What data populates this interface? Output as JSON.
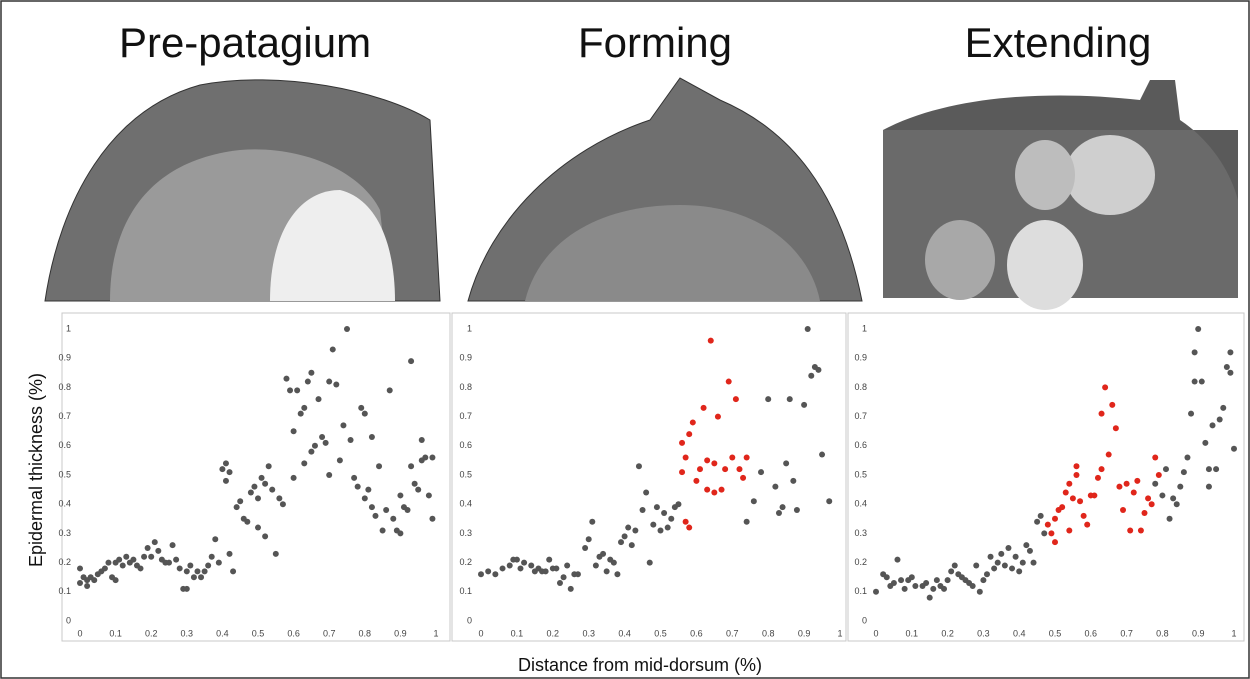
{
  "chart_data": [
    {
      "type": "scatter",
      "title": "Pre-patagium",
      "ylabel": "Epidermal thickness (%)",
      "xlim": [
        0,
        1
      ],
      "ylim": [
        0,
        1
      ],
      "xticks": [
        0,
        0.1,
        0.2,
        0.3,
        0.4,
        0.5,
        0.6,
        0.7,
        0.8,
        0.9,
        1
      ],
      "yticks": [
        0,
        0.1,
        0.2,
        0.3,
        0.4,
        0.5,
        0.6,
        0.7,
        0.8,
        0.9,
        1
      ],
      "series": [
        {
          "color": "#555555",
          "x": [
            0,
            0,
            0.01,
            0.02,
            0.02,
            0.03,
            0.04,
            0.05,
            0.06,
            0.07,
            0.08,
            0.09,
            0.1,
            0.1,
            0.11,
            0.12,
            0.13,
            0.14,
            0.15,
            0.16,
            0.17,
            0.18,
            0.19,
            0.2,
            0.21,
            0.22,
            0.23,
            0.24,
            0.25,
            0.26,
            0.27,
            0.28,
            0.29,
            0.3,
            0.3,
            0.31,
            0.32,
            0.33,
            0.34,
            0.35,
            0.36,
            0.37,
            0.38,
            0.39,
            0.4,
            0.41,
            0.41,
            0.42,
            0.42,
            0.43,
            0.44,
            0.45,
            0.46,
            0.47,
            0.48,
            0.49,
            0.5,
            0.5,
            0.51,
            0.52,
            0.52,
            0.53,
            0.54,
            0.55,
            0.56,
            0.57,
            0.58,
            0.59,
            0.6,
            0.6,
            0.61,
            0.62,
            0.63,
            0.63,
            0.64,
            0.65,
            0.65,
            0.66,
            0.67,
            0.68,
            0.69,
            0.7,
            0.7,
            0.71,
            0.72,
            0.73,
            0.74,
            0.75,
            0.76,
            0.77,
            0.78,
            0.79,
            0.8,
            0.8,
            0.81,
            0.82,
            0.82,
            0.83,
            0.84,
            0.85,
            0.86,
            0.87,
            0.88,
            0.89,
            0.9,
            0.9,
            0.91,
            0.92,
            0.93,
            0.93,
            0.94,
            0.95,
            0.96,
            0.96,
            0.97,
            0.98,
            0.99,
            0.99
          ],
          "values": [
            0.18,
            0.13,
            0.15,
            0.14,
            0.12,
            0.15,
            0.14,
            0.16,
            0.17,
            0.18,
            0.2,
            0.15,
            0.14,
            0.2,
            0.21,
            0.19,
            0.22,
            0.2,
            0.21,
            0.19,
            0.18,
            0.22,
            0.25,
            0.22,
            0.27,
            0.24,
            0.21,
            0.2,
            0.2,
            0.26,
            0.21,
            0.18,
            0.11,
            0.11,
            0.17,
            0.19,
            0.15,
            0.17,
            0.15,
            0.17,
            0.19,
            0.22,
            0.28,
            0.2,
            0.52,
            0.48,
            0.54,
            0.51,
            0.23,
            0.17,
            0.39,
            0.41,
            0.35,
            0.34,
            0.44,
            0.46,
            0.32,
            0.42,
            0.49,
            0.47,
            0.29,
            0.53,
            0.45,
            0.23,
            0.42,
            0.4,
            0.83,
            0.79,
            0.65,
            0.49,
            0.79,
            0.71,
            0.73,
            0.54,
            0.82,
            0.85,
            0.58,
            0.6,
            0.76,
            0.63,
            0.61,
            0.5,
            0.82,
            0.93,
            0.81,
            0.55,
            0.67,
            1,
            0.62,
            0.49,
            0.46,
            0.73,
            0.71,
            0.42,
            0.45,
            0.39,
            0.63,
            0.36,
            0.53,
            0.31,
            0.38,
            0.79,
            0.35,
            0.31,
            0.3,
            0.43,
            0.39,
            0.38,
            0.53,
            0.89,
            0.47,
            0.45,
            0.55,
            0.62,
            0.56,
            0.43,
            0.35,
            0.56
          ]
        }
      ]
    },
    {
      "type": "scatter",
      "title": "Forming",
      "xlabel": "Distance from mid-dorsum (%)",
      "xlim": [
        0,
        1
      ],
      "ylim": [
        0,
        1
      ],
      "xticks": [
        0,
        0.1,
        0.2,
        0.3,
        0.4,
        0.5,
        0.6,
        0.7,
        0.8,
        0.9,
        1
      ],
      "yticks": [
        0,
        0.1,
        0.2,
        0.3,
        0.4,
        0.5,
        0.6,
        0.7,
        0.8,
        0.9,
        1
      ],
      "series": [
        {
          "color": "#555555",
          "x": [
            0,
            0.02,
            0.04,
            0.06,
            0.08,
            0.09,
            0.1,
            0.11,
            0.12,
            0.14,
            0.15,
            0.16,
            0.17,
            0.18,
            0.19,
            0.2,
            0.21,
            0.22,
            0.23,
            0.24,
            0.25,
            0.26,
            0.27,
            0.29,
            0.3,
            0.31,
            0.32,
            0.33,
            0.34,
            0.35,
            0.36,
            0.37,
            0.38,
            0.39,
            0.4,
            0.41,
            0.42,
            0.43,
            0.44,
            0.45,
            0.46,
            0.47,
            0.48,
            0.49,
            0.5,
            0.51,
            0.52,
            0.53,
            0.54,
            0.55,
            0.74,
            0.76,
            0.78,
            0.8,
            0.82,
            0.83,
            0.84,
            0.85,
            0.86,
            0.87,
            0.88,
            0.9,
            0.91,
            0.92,
            0.93,
            0.94,
            0.95,
            0.97
          ],
          "values": [
            0.16,
            0.17,
            0.16,
            0.18,
            0.19,
            0.21,
            0.21,
            0.18,
            0.2,
            0.19,
            0.17,
            0.18,
            0.17,
            0.17,
            0.21,
            0.18,
            0.18,
            0.13,
            0.15,
            0.19,
            0.11,
            0.16,
            0.16,
            0.25,
            0.28,
            0.34,
            0.19,
            0.22,
            0.23,
            0.17,
            0.21,
            0.2,
            0.16,
            0.27,
            0.29,
            0.32,
            0.26,
            0.31,
            0.53,
            0.38,
            0.44,
            0.2,
            0.33,
            0.39,
            0.31,
            0.37,
            0.32,
            0.35,
            0.39,
            0.4,
            0.34,
            0.41,
            0.51,
            0.76,
            0.46,
            0.37,
            0.39,
            0.54,
            0.76,
            0.48,
            0.38,
            0.74,
            1,
            0.84,
            0.87,
            0.86,
            0.57,
            0.41
          ]
        },
        {
          "color": "#e0261b",
          "x": [
            0.56,
            0.56,
            0.57,
            0.57,
            0.58,
            0.58,
            0.59,
            0.6,
            0.61,
            0.62,
            0.63,
            0.63,
            0.64,
            0.65,
            0.65,
            0.66,
            0.67,
            0.68,
            0.69,
            0.7,
            0.71,
            0.72,
            0.73,
            0.74
          ],
          "values": [
            0.51,
            0.61,
            0.56,
            0.34,
            0.32,
            0.64,
            0.68,
            0.48,
            0.52,
            0.73,
            0.55,
            0.45,
            0.96,
            0.54,
            0.44,
            0.7,
            0.45,
            0.52,
            0.82,
            0.56,
            0.76,
            0.52,
            0.49,
            0.56
          ]
        }
      ]
    },
    {
      "type": "scatter",
      "title": "Extending",
      "xlim": [
        0,
        1
      ],
      "ylim": [
        0,
        1
      ],
      "xticks": [
        0,
        0.1,
        0.2,
        0.3,
        0.4,
        0.5,
        0.6,
        0.7,
        0.8,
        0.9,
        1
      ],
      "yticks": [
        0,
        0.1,
        0.2,
        0.3,
        0.4,
        0.5,
        0.6,
        0.7,
        0.8,
        0.9,
        1
      ],
      "series": [
        {
          "color": "#555555",
          "x": [
            0,
            0.02,
            0.03,
            0.04,
            0.05,
            0.06,
            0.07,
            0.08,
            0.09,
            0.1,
            0.11,
            0.13,
            0.14,
            0.15,
            0.16,
            0.17,
            0.18,
            0.19,
            0.2,
            0.21,
            0.22,
            0.23,
            0.24,
            0.25,
            0.26,
            0.27,
            0.28,
            0.29,
            0.3,
            0.31,
            0.32,
            0.33,
            0.34,
            0.35,
            0.36,
            0.37,
            0.38,
            0.39,
            0.4,
            0.41,
            0.42,
            0.43,
            0.44,
            0.45,
            0.46,
            0.47,
            0.78,
            0.8,
            0.81,
            0.82,
            0.83,
            0.84,
            0.85,
            0.86,
            0.87,
            0.88,
            0.89,
            0.89,
            0.9,
            0.91,
            0.92,
            0.93,
            0.93,
            0.94,
            0.95,
            0.96,
            0.97,
            0.98,
            0.99,
            0.99,
            1
          ],
          "values": [
            0.1,
            0.16,
            0.15,
            0.12,
            0.13,
            0.21,
            0.14,
            0.11,
            0.14,
            0.15,
            0.12,
            0.12,
            0.13,
            0.08,
            0.11,
            0.14,
            0.12,
            0.11,
            0.14,
            0.17,
            0.19,
            0.16,
            0.15,
            0.14,
            0.13,
            0.12,
            0.19,
            0.1,
            0.14,
            0.16,
            0.22,
            0.18,
            0.2,
            0.23,
            0.19,
            0.25,
            0.18,
            0.22,
            0.17,
            0.2,
            0.26,
            0.24,
            0.2,
            0.34,
            0.36,
            0.3,
            0.47,
            0.43,
            0.52,
            0.35,
            0.42,
            0.4,
            0.46,
            0.51,
            0.56,
            0.71,
            0.82,
            0.92,
            1,
            0.82,
            0.61,
            0.46,
            0.52,
            0.67,
            0.52,
            0.69,
            0.73,
            0.87,
            0.92,
            0.85,
            0.59
          ]
        },
        {
          "color": "#e0261b",
          "x": [
            0.48,
            0.49,
            0.5,
            0.5,
            0.51,
            0.52,
            0.53,
            0.54,
            0.54,
            0.55,
            0.56,
            0.56,
            0.57,
            0.58,
            0.59,
            0.6,
            0.61,
            0.62,
            0.63,
            0.63,
            0.64,
            0.65,
            0.66,
            0.67,
            0.68,
            0.69,
            0.7,
            0.71,
            0.72,
            0.73,
            0.74,
            0.75,
            0.76,
            0.77,
            0.78,
            0.79
          ],
          "values": [
            0.33,
            0.3,
            0.27,
            0.35,
            0.38,
            0.39,
            0.44,
            0.31,
            0.47,
            0.42,
            0.5,
            0.53,
            0.41,
            0.36,
            0.33,
            0.43,
            0.43,
            0.49,
            0.52,
            0.71,
            0.8,
            0.57,
            0.74,
            0.66,
            0.46,
            0.38,
            0.47,
            0.31,
            0.44,
            0.48,
            0.31,
            0.37,
            0.42,
            0.4,
            0.56,
            0.5
          ]
        }
      ]
    }
  ]
}
